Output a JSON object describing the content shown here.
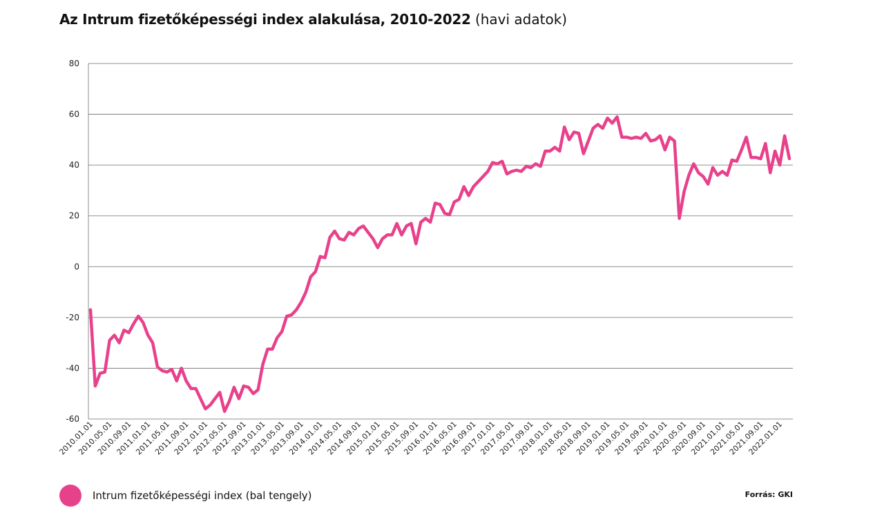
{
  "chart_data": {
    "type": "line",
    "title": "Az Intrum fizetőképességi index alakulása, 2010-2022",
    "subtitle": "(havi adatok)",
    "ylim": [
      -60,
      80
    ],
    "yticks": [
      "80",
      "60",
      "40",
      "20",
      "0",
      "-20",
      "-40",
      "-60"
    ],
    "ytick_values": [
      80,
      60,
      40,
      20,
      0,
      -20,
      -40,
      -60
    ],
    "xtick_labels": [
      "2010.01.01",
      "2010.05.01",
      "2010.09.01",
      "2011.01.01",
      "2011.05.01",
      "2011.09.01",
      "2012.01.01",
      "2012.05.01",
      "2012.09.01",
      "2013.01.01",
      "2013.05.01",
      "2013.09.01",
      "2014.01.01",
      "2014.05.01",
      "2014.09.01",
      "2015.01.01",
      "2015.05.01",
      "2015.09.01",
      "2016.01.01",
      "2016.05.01",
      "2016.09.01",
      "2017.01.01",
      "2017.05.01",
      "2017.09.01",
      "2018.01.01",
      "2018.05.01",
      "2018.09.01",
      "2019.01.01",
      "2019.05.01",
      "2019.09.01",
      "2020.01.01",
      "2020.05.01",
      "2020.09.01",
      "2021.01.01",
      "2021.05.01",
      "2021.09.01",
      "2022.01.01"
    ],
    "x_start": "2010.01.01",
    "x_end": "2022.03.01",
    "grid": true,
    "legend_position": "bottom-left",
    "series": [
      {
        "name": "Intrum fizetőképességi index (bal tengely)",
        "color": "#e8418c",
        "values": [
          -17,
          -47,
          -42,
          -41.5,
          -29,
          -27,
          -30,
          -25,
          -26,
          -22.5,
          -19.5,
          -22,
          -27,
          -30,
          -39.5,
          -41,
          -41.5,
          -40.5,
          -45,
          -40,
          -45,
          -48,
          -48,
          -52,
          -56,
          -54.5,
          -52,
          -49.5,
          -57,
          -53,
          -47.5,
          -52,
          -47,
          -47.5,
          -50,
          -48.5,
          -38.5,
          -32.5,
          -32.5,
          -28,
          -25.5,
          -19.5,
          -19,
          -17,
          -14,
          -10,
          -4,
          -2,
          4,
          3.5,
          11.5,
          14,
          11,
          10.5,
          13.5,
          12.5,
          15,
          16,
          13.5,
          11,
          7.5,
          11,
          12.5,
          12.5,
          17,
          12.5,
          16,
          17,
          9,
          17.5,
          19,
          17.5,
          25,
          24.5,
          21,
          20.5,
          25.5,
          26.5,
          31.5,
          28,
          31.5,
          33.5,
          35.5,
          37.5,
          41,
          40.5,
          41.5,
          36.5,
          37.5,
          38,
          37.5,
          39.5,
          39,
          40.5,
          39.5,
          45.5,
          45.5,
          47,
          45.5,
          55,
          50,
          53,
          52.5,
          44.5,
          49.5,
          54.5,
          56,
          54.5,
          58.5,
          56.5,
          59,
          51,
          51,
          50.5,
          51,
          50.5,
          52.5,
          49.5,
          50,
          51.5,
          46,
          51,
          49.5,
          19,
          29.5,
          36,
          40.5,
          37,
          35.5,
          32.5,
          39,
          36,
          37.5,
          36,
          42,
          41.5,
          46,
          51,
          43,
          43,
          42.5,
          48.5,
          37,
          45.5,
          40,
          51.5,
          42.5
        ]
      }
    ]
  },
  "legend": {
    "label": "Intrum fizetőképességi index (bal tengely)",
    "color": "#e8418c"
  },
  "source": "Forrás: GKI"
}
